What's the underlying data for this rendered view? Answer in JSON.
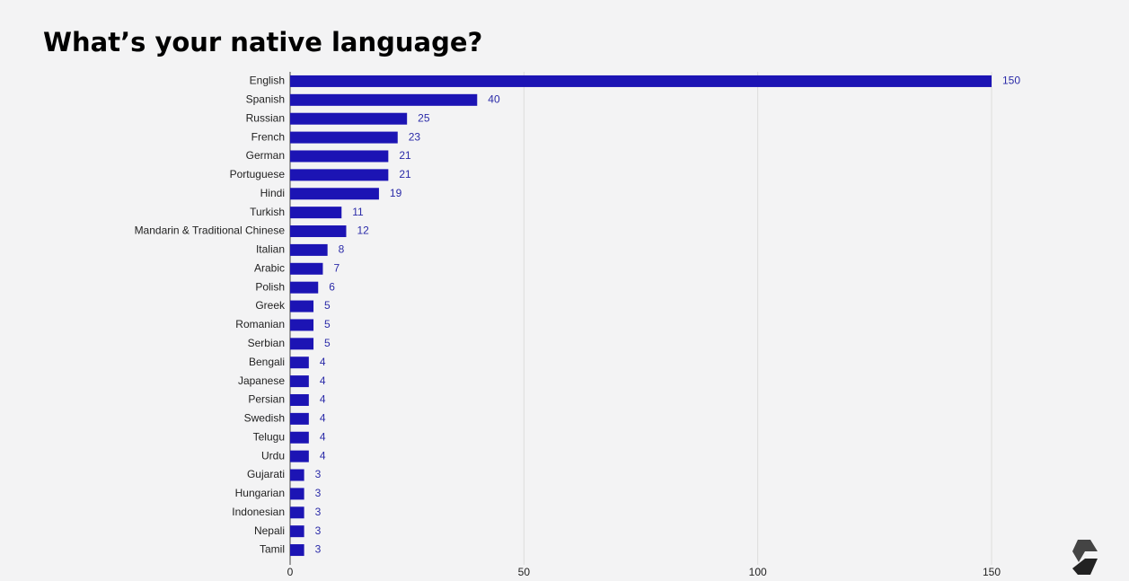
{
  "chart_data": {
    "type": "bar",
    "title": "What’s your native language?",
    "categories": [
      "English",
      "Spanish",
      "Russian",
      "French",
      "German",
      "Portuguese",
      "Hindi",
      "Turkish",
      "Mandarin & Traditional Chinese",
      "Italian",
      "Arabic",
      "Polish",
      "Greek",
      "Romanian",
      "Serbian",
      "Bengali",
      "Japanese",
      "Persian",
      "Swedish",
      "Telugu",
      "Urdu",
      "Gujarati",
      "Hungarian",
      "Indonesian",
      "Nepali",
      "Tamil"
    ],
    "values": [
      150,
      40,
      25,
      23,
      21,
      21,
      19,
      11,
      12,
      8,
      7,
      6,
      5,
      5,
      5,
      4,
      4,
      4,
      4,
      4,
      4,
      3,
      3,
      3,
      3,
      3
    ],
    "color": "#1c14b4",
    "xlim": [
      0,
      150
    ],
    "xticks": [
      0,
      50,
      100,
      150
    ],
    "grid": true
  }
}
